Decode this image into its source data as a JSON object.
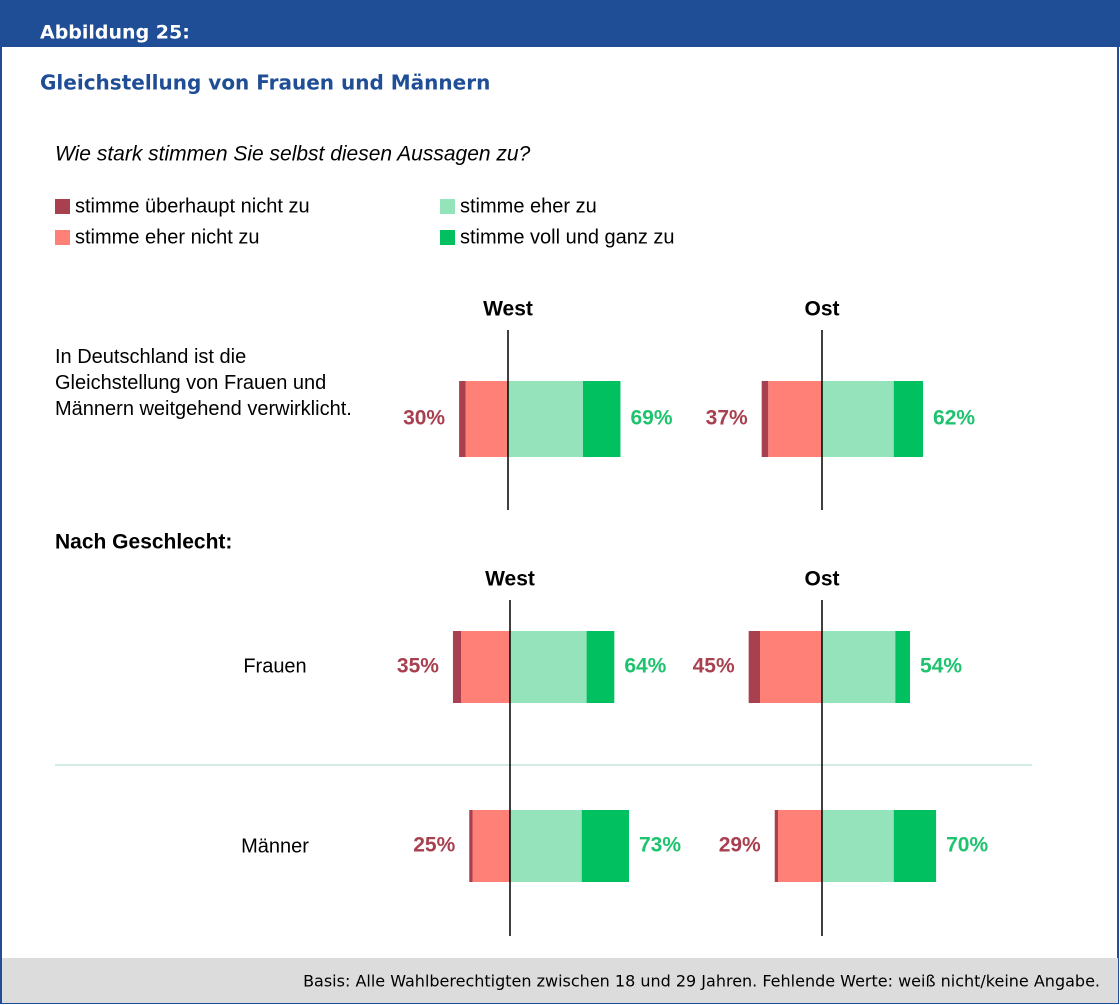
{
  "header": "Abbildung 25:",
  "footer": "Basis: Alle Wahlberechtigten zwischen 18 und 29 Jahren. Fehlende Werte: weiß nicht/keine Angabe.",
  "chart_data": {
    "type": "diverging_bar",
    "title": "Gleichstellung von Frauen und Männern",
    "subtitle": "Wie stark stimmen Sie selbst diesen Aussagen zu?",
    "panels": [
      "West",
      "Ost"
    ],
    "group_label": "Nach Geschlecht:",
    "categories": [
      "In Deutschland ist die Gleichstellung von Frauen und Männern weitgehend verwirklicht.",
      "Frauen",
      "Männer"
    ],
    "series": [
      {
        "name": "stimme überhaupt nicht zu",
        "color": "#a8404f",
        "side": "negative",
        "values": [
          [
            4,
            4
          ],
          [
            5,
            7
          ],
          [
            2,
            2
          ]
        ]
      },
      {
        "name": "stimme eher nicht zu",
        "color": "#ff8077",
        "side": "negative",
        "values": [
          [
            26,
            33
          ],
          [
            30,
            38
          ],
          [
            23,
            27
          ]
        ]
      },
      {
        "name": "stimme eher zu",
        "color": "#94e3bb",
        "side": "positive",
        "values": [
          [
            46,
            44
          ],
          [
            47,
            45
          ],
          [
            44,
            44
          ]
        ]
      },
      {
        "name": "stimme voll und ganz zu",
        "color": "#00c060",
        "side": "positive",
        "values": [
          [
            23,
            18
          ],
          [
            17,
            9
          ],
          [
            29,
            26
          ]
        ]
      }
    ],
    "negative_total": {
      "color": "#a8404f",
      "values": [
        [
          30,
          37
        ],
        [
          35,
          45
        ],
        [
          25,
          29
        ]
      ],
      "value_labels": [
        [
          "30%",
          "37%"
        ],
        [
          "35%",
          "45%"
        ],
        [
          "25%",
          "29%"
        ]
      ]
    },
    "positive_total": {
      "color": "#1ec36e",
      "values": [
        [
          69,
          62
        ],
        [
          64,
          54
        ],
        [
          73,
          70
        ]
      ],
      "value_labels": [
        [
          "69%",
          "62%"
        ],
        [
          "64%",
          "54%"
        ],
        [
          "73%",
          "70%"
        ]
      ]
    }
  }
}
